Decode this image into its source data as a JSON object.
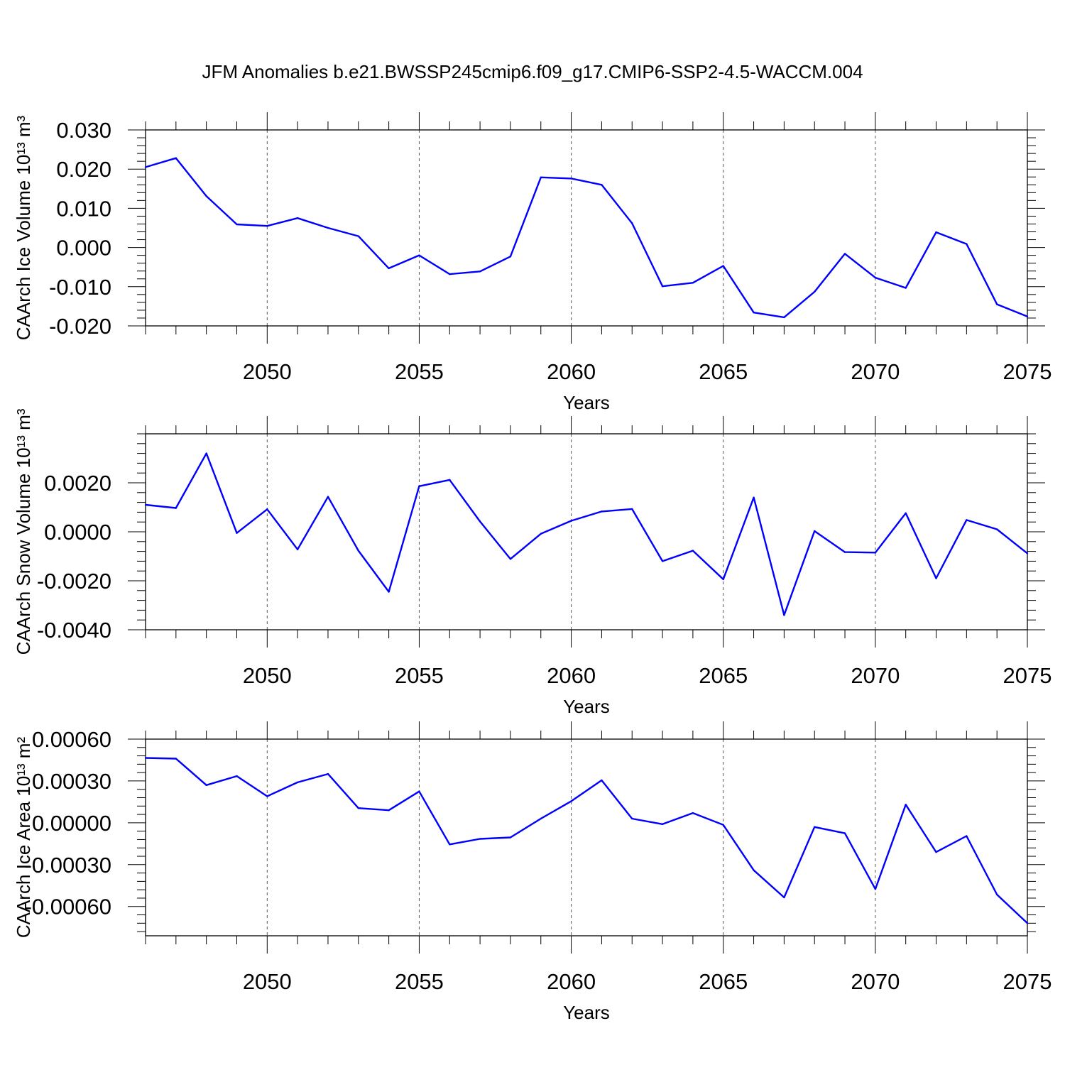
{
  "title": "JFM Anomalies b.e21.BWSSP245cmip6.f09_g17.CMIP6-SSP2-4.5-WACCM.004",
  "line_color": "#0000ff",
  "chart_data": [
    {
      "type": "line",
      "ylabel": "CAArch Ice Volume 10¹³ m³",
      "xlabel": "Years",
      "xlim": [
        2046,
        2075
      ],
      "ylim": [
        -0.02,
        0.03
      ],
      "x_ticks": [
        2050,
        2055,
        2060,
        2065,
        2070,
        2075
      ],
      "x_tick_labels": [
        "2050",
        "2055",
        "2060",
        "2065",
        "2070",
        "2075"
      ],
      "y_ticks": [
        -0.02,
        -0.01,
        0.0,
        0.01,
        0.02,
        0.03
      ],
      "y_tick_labels": [
        "-0.020",
        "-0.010",
        "0.000",
        "0.010",
        "0.020",
        "0.030"
      ],
      "grid": "dashed vertical at labeled years",
      "x": [
        2046,
        2047,
        2048,
        2049,
        2050,
        2051,
        2052,
        2053,
        2054,
        2055,
        2056,
        2057,
        2058,
        2059,
        2060,
        2061,
        2062,
        2063,
        2064,
        2065,
        2066,
        2067,
        2068,
        2069,
        2070,
        2071,
        2072,
        2073,
        2074,
        2075
      ],
      "values": [
        0.0205,
        0.0228,
        0.0131,
        0.0059,
        0.0055,
        0.0075,
        0.005,
        0.0029,
        -0.0053,
        -0.002,
        -0.0068,
        -0.0061,
        -0.0023,
        0.0179,
        0.0176,
        0.016,
        0.0062,
        -0.0099,
        -0.009,
        -0.0047,
        -0.0166,
        -0.0178,
        -0.0113,
        -0.0016,
        -0.0077,
        -0.0103,
        0.0039,
        0.0009,
        -0.0145,
        -0.0176
      ]
    },
    {
      "type": "line",
      "ylabel": "CAArch Snow Volume 10¹³ m³",
      "xlabel": "Years",
      "xlim": [
        2046,
        2075
      ],
      "ylim": [
        -0.004,
        0.004
      ],
      "x_ticks": [
        2050,
        2055,
        2060,
        2065,
        2070,
        2075
      ],
      "x_tick_labels": [
        "2050",
        "2055",
        "2060",
        "2065",
        "2070",
        "2075"
      ],
      "y_ticks": [
        -0.004,
        -0.002,
        0.0,
        0.002
      ],
      "y_tick_labels": [
        "-0.0040",
        "-0.0020",
        "0.0000",
        "0.0020"
      ],
      "grid": "dashed vertical at labeled years",
      "x": [
        2046,
        2047,
        2048,
        2049,
        2050,
        2051,
        2052,
        2053,
        2054,
        2055,
        2056,
        2057,
        2058,
        2059,
        2060,
        2061,
        2062,
        2063,
        2064,
        2065,
        2066,
        2067,
        2068,
        2069,
        2070,
        2071,
        2072,
        2073,
        2074,
        2075
      ],
      "values": [
        0.0011,
        0.00097,
        0.0032,
        -5e-05,
        0.00092,
        -0.00072,
        0.00143,
        -0.00077,
        -0.00245,
        0.00186,
        0.00212,
        0.00042,
        -0.00111,
        -8e-05,
        0.00045,
        0.00083,
        0.00093,
        -0.0012,
        -0.00077,
        -0.00194,
        0.0014,
        -0.0034,
        3e-05,
        -0.00083,
        -0.00085,
        0.00076,
        -0.0019,
        0.00048,
        0.0001,
        -0.00088
      ]
    },
    {
      "type": "line",
      "ylabel": "CAArch Ice Area 10¹³ m²",
      "xlabel": "Years",
      "xlim": [
        2046,
        2075
      ],
      "ylim": [
        -0.00081,
        0.0006
      ],
      "x_ticks": [
        2050,
        2055,
        2060,
        2065,
        2070,
        2075
      ],
      "x_tick_labels": [
        "2050",
        "2055",
        "2060",
        "2065",
        "2070",
        "2075"
      ],
      "y_ticks": [
        -0.0006,
        -0.0003,
        0.0,
        0.0003,
        0.0006
      ],
      "y_tick_labels": [
        "-0.00060",
        "-0.00030",
        "0.00000",
        "0.00030",
        "0.00060"
      ],
      "grid": "dashed vertical at labeled years",
      "x": [
        2046,
        2047,
        2048,
        2049,
        2050,
        2051,
        2052,
        2053,
        2054,
        2055,
        2056,
        2057,
        2058,
        2059,
        2060,
        2061,
        2062,
        2063,
        2064,
        2065,
        2066,
        2067,
        2068,
        2069,
        2070,
        2071,
        2072,
        2073,
        2074,
        2075
      ],
      "values": [
        0.000465,
        0.00046,
        0.00027,
        0.000335,
        0.00019,
        0.00029,
        0.00035,
        0.000105,
        9e-05,
        0.000225,
        -0.000155,
        -0.000115,
        -0.000105,
        3e-05,
        0.000155,
        0.000305,
        3e-05,
        -1e-05,
        7e-05,
        -1.5e-05,
        -0.00034,
        -0.000535,
        -3e-05,
        -7.5e-05,
        -0.000475,
        0.00013,
        -0.00021,
        -9.5e-05,
        -0.000515,
        -0.00072
      ]
    }
  ]
}
